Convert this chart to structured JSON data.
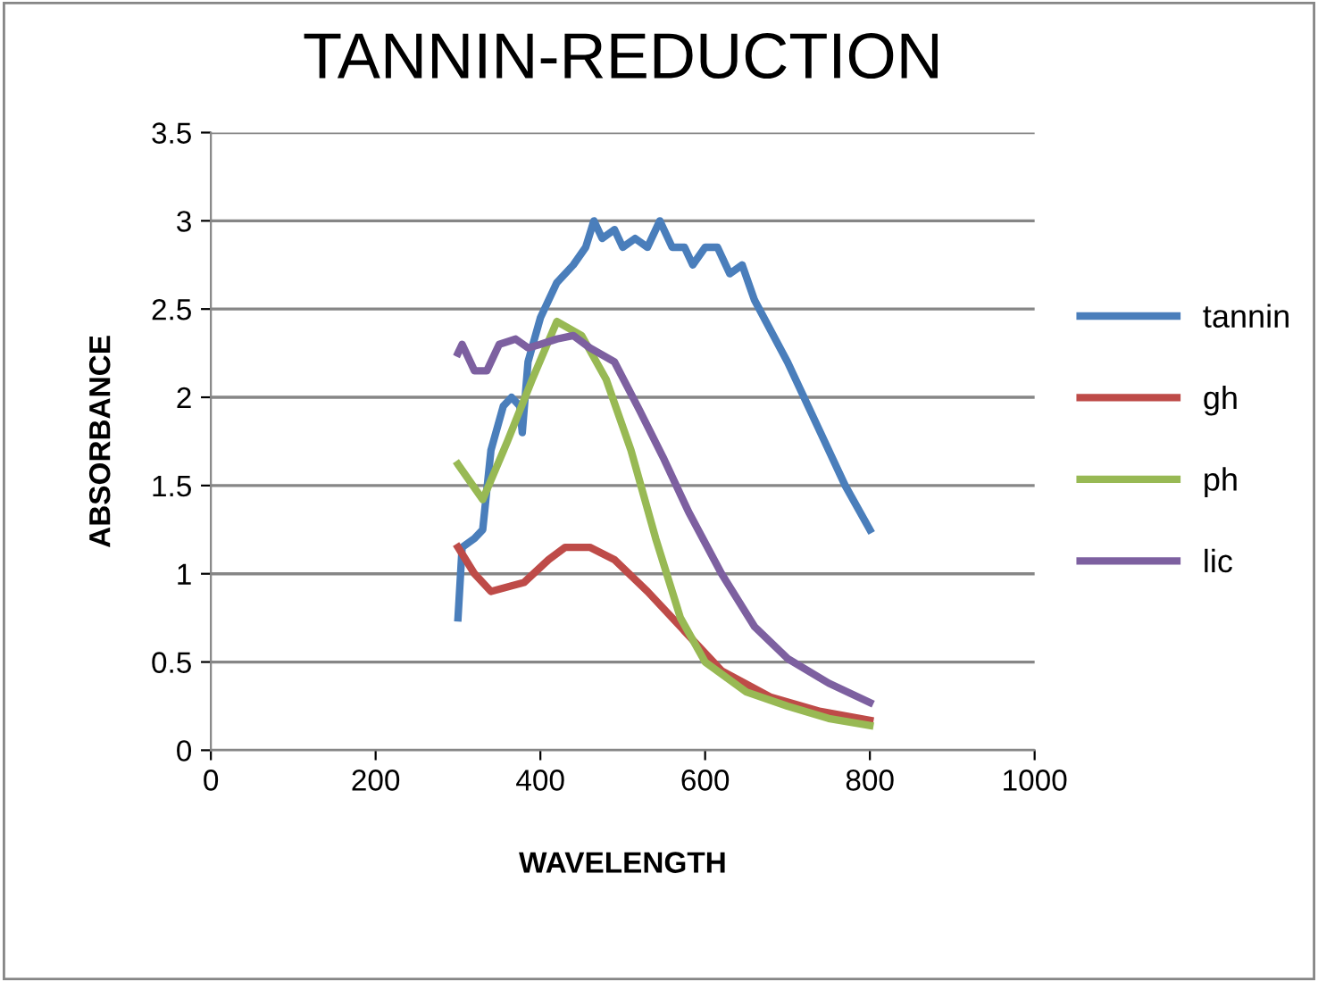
{
  "chart_data": {
    "type": "line",
    "title": "TANNIN-REDUCTION",
    "xlabel": "WAVELENGTH",
    "ylabel": "ABSORBANCE",
    "xlim": [
      0,
      1000
    ],
    "xticks": [
      0,
      200,
      400,
      600,
      800,
      1000
    ],
    "ylim": [
      0,
      3.5
    ],
    "yticks": [
      0,
      0.5,
      1,
      1.5,
      2,
      2.5,
      3,
      3.5
    ],
    "grid": "y",
    "legend": "right",
    "marker": "none",
    "line_style": "solid",
    "series": [
      {
        "name": "tannin",
        "color": "#4a7ebb",
        "x": [
          300,
          305,
          320,
          330,
          340,
          355,
          365,
          375,
          378,
          385,
          400,
          420,
          440,
          455,
          465,
          475,
          490,
          500,
          515,
          530,
          545,
          560,
          575,
          585,
          600,
          615,
          630,
          645,
          660,
          700,
          740,
          770,
          800
        ],
        "values": [
          0.75,
          1.15,
          1.2,
          1.25,
          1.7,
          1.95,
          2.0,
          1.95,
          1.8,
          2.2,
          2.45,
          2.65,
          2.75,
          2.85,
          3.0,
          2.9,
          2.95,
          2.85,
          2.9,
          2.85,
          3.0,
          2.85,
          2.85,
          2.75,
          2.85,
          2.85,
          2.7,
          2.75,
          2.55,
          2.2,
          1.8,
          1.5,
          1.25
        ]
      },
      {
        "name": "gh",
        "color": "#be4b48",
        "x": [
          300,
          320,
          340,
          380,
          410,
          430,
          460,
          490,
          530,
          570,
          620,
          680,
          740,
          800
        ],
        "values": [
          1.15,
          1.0,
          0.9,
          0.95,
          1.08,
          1.15,
          1.15,
          1.08,
          0.9,
          0.7,
          0.45,
          0.3,
          0.22,
          0.17
        ]
      },
      {
        "name": "ph",
        "color": "#98b954",
        "x": [
          300,
          330,
          360,
          390,
          420,
          450,
          480,
          510,
          540,
          570,
          600,
          650,
          700,
          750,
          800
        ],
        "values": [
          1.62,
          1.42,
          1.75,
          2.1,
          2.43,
          2.35,
          2.1,
          1.7,
          1.2,
          0.75,
          0.5,
          0.33,
          0.25,
          0.18,
          0.14
        ]
      },
      {
        "name": "lic",
        "color": "#7d60a0",
        "x": [
          300,
          305,
          320,
          335,
          350,
          370,
          385,
          400,
          420,
          440,
          460,
          490,
          520,
          550,
          580,
          620,
          660,
          700,
          750,
          800
        ],
        "values": [
          2.25,
          2.3,
          2.15,
          2.15,
          2.3,
          2.33,
          2.28,
          2.3,
          2.33,
          2.35,
          2.28,
          2.2,
          1.93,
          1.65,
          1.35,
          1.0,
          0.7,
          0.52,
          0.38,
          0.27
        ]
      }
    ]
  }
}
